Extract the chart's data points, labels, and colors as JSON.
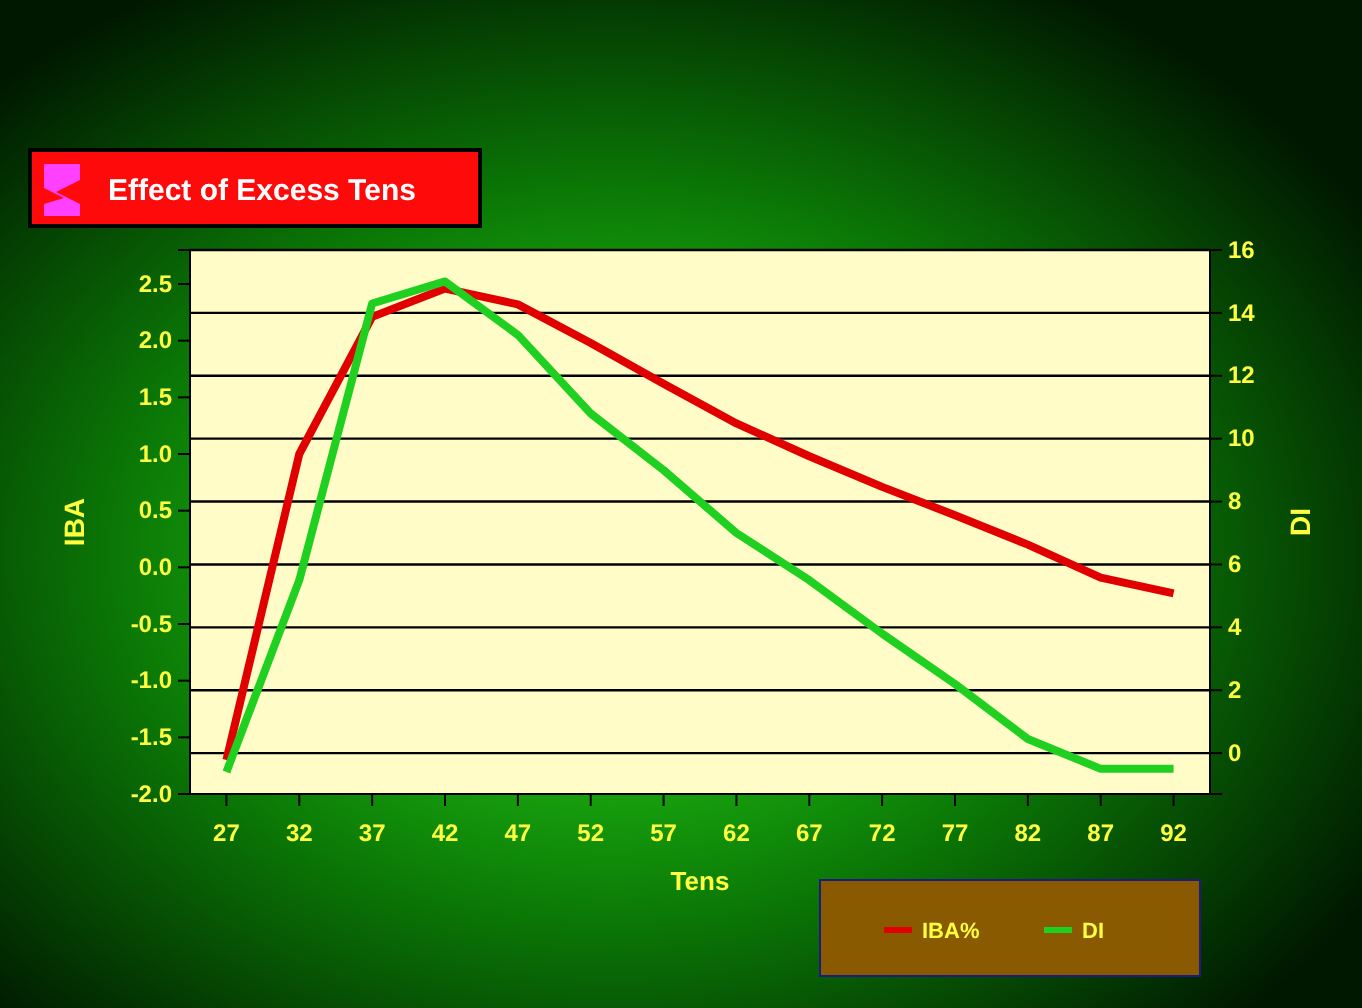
{
  "chart_data": {
    "type": "line",
    "title": "Effect of Excess Tens",
    "xlabel": "Tens",
    "ylabel": "IBA",
    "y2label": "DI",
    "categories": [
      "27",
      "32",
      "37",
      "42",
      "47",
      "52",
      "57",
      "62",
      "67",
      "72",
      "77",
      "82",
      "87",
      "92"
    ],
    "series": [
      {
        "name": "IBA%",
        "color": "#e00000",
        "values": [
          -1.7,
          1.0,
          2.21,
          2.46,
          2.32,
          1.98,
          1.62,
          1.27,
          0.98,
          0.71,
          0.46,
          0.2,
          -0.09,
          -0.23
        ]
      },
      {
        "name": "DI",
        "color": "#20d020",
        "axis": "y2",
        "values": [
          -0.6,
          5.5,
          14.3,
          15.0,
          13.3,
          10.8,
          9.0,
          7.0,
          5.5,
          3.8,
          2.2,
          0.45,
          -0.5,
          -0.5
        ]
      }
    ],
    "ylim": [
      -2.0,
      2.8
    ],
    "yticks": [
      {
        "value": -2,
        "label": "-2.0"
      },
      {
        "value": -1.5,
        "label": "-1.5"
      },
      {
        "value": -1,
        "label": "-1.0"
      },
      {
        "value": -0.5,
        "label": "-0.5"
      },
      {
        "value": 0,
        "label": "0.0"
      },
      {
        "value": 0.5,
        "label": "0.5"
      },
      {
        "value": 1,
        "label": "1.0"
      },
      {
        "value": 1.5,
        "label": "1.5"
      },
      {
        "value": 2,
        "label": "2.0"
      },
      {
        "value": 2.5,
        "label": "2.5"
      }
    ],
    "y2lim": [
      -1.3,
      16
    ],
    "y2ticks": [
      0,
      2,
      4,
      6,
      8,
      10,
      12,
      14,
      16
    ],
    "grid": "y2",
    "legend": "bottom right",
    "marker": "none",
    "line_style": "solid"
  }
}
